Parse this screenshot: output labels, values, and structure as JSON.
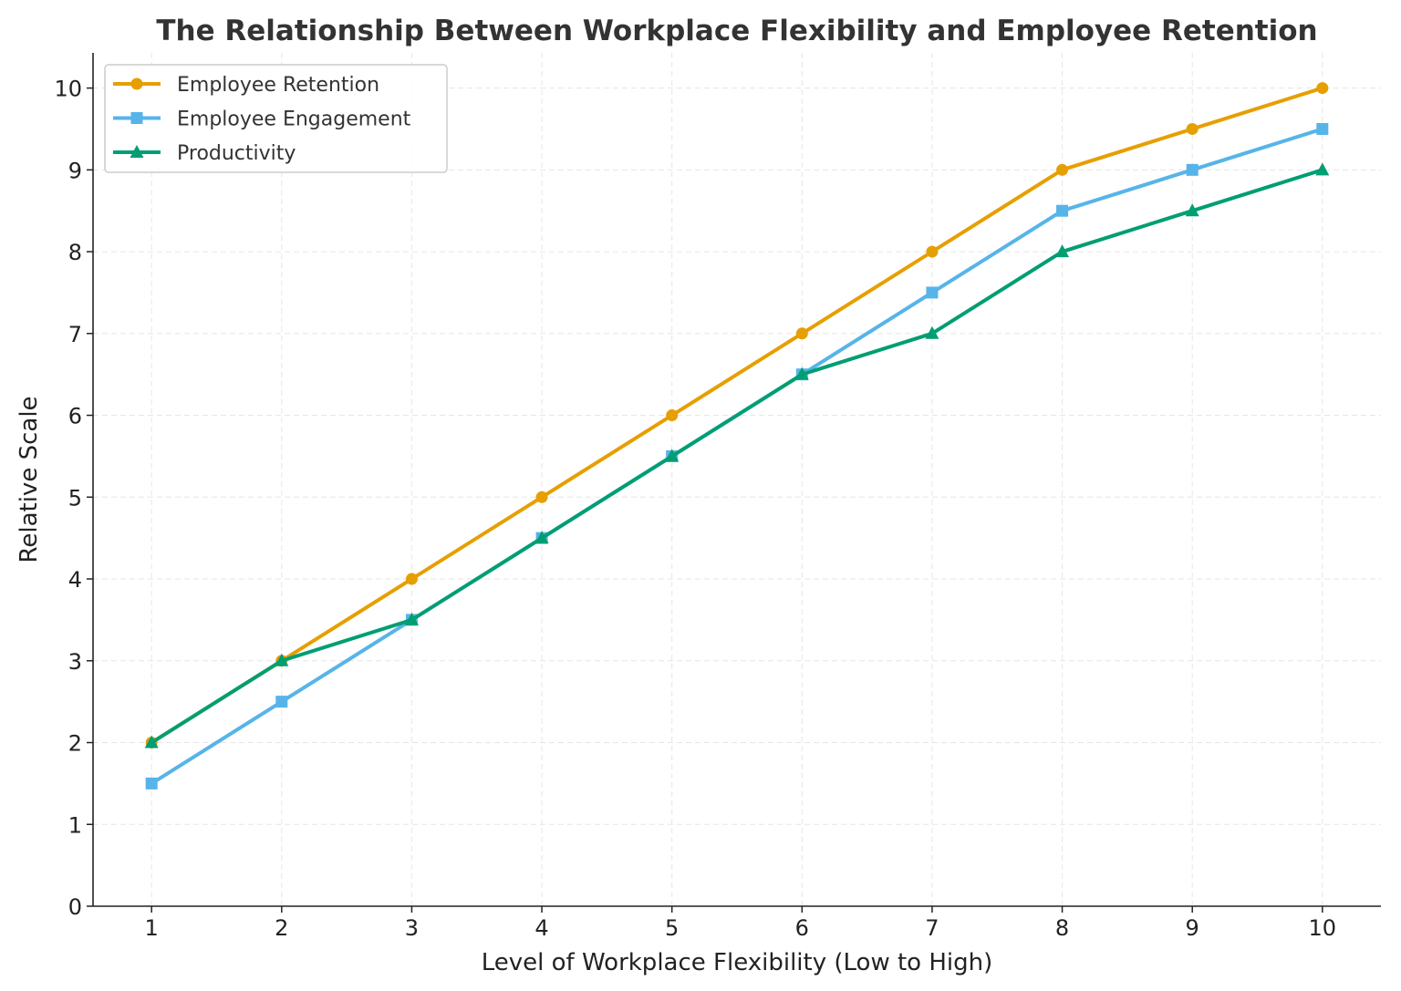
{
  "chart_data": {
    "type": "line",
    "title": "The Relationship Between Workplace Flexibility and Employee Retention",
    "xlabel": "Level of Workplace Flexibility (Low to High)",
    "ylabel": "Relative Scale",
    "x": [
      1,
      2,
      3,
      4,
      5,
      6,
      7,
      8,
      9,
      10
    ],
    "xticks": [
      "1",
      "2",
      "3",
      "4",
      "5",
      "6",
      "7",
      "8",
      "9",
      "10"
    ],
    "yticks": [
      "0",
      "1",
      "2",
      "3",
      "4",
      "5",
      "6",
      "7",
      "8",
      "9",
      "10"
    ],
    "xlim": [
      0.55,
      10.45
    ],
    "ylim": [
      0,
      10.43
    ],
    "grid": true,
    "legend_position": "top-left",
    "series": [
      {
        "name": "Employee Retention",
        "color": "#E69F00",
        "marker": "circle",
        "values": [
          2,
          3,
          4,
          5,
          6,
          7,
          8,
          9,
          9.5,
          10
        ]
      },
      {
        "name": "Employee Engagement",
        "color": "#56B4E9",
        "marker": "square",
        "values": [
          1.5,
          2.5,
          3.5,
          4.5,
          5.5,
          6.5,
          7.5,
          8.5,
          9,
          9.5
        ]
      },
      {
        "name": "Productivity",
        "color": "#009E73",
        "marker": "triangle",
        "values": [
          2,
          3,
          3.5,
          4.5,
          5.5,
          6.5,
          7,
          8,
          8.5,
          9
        ]
      }
    ]
  }
}
